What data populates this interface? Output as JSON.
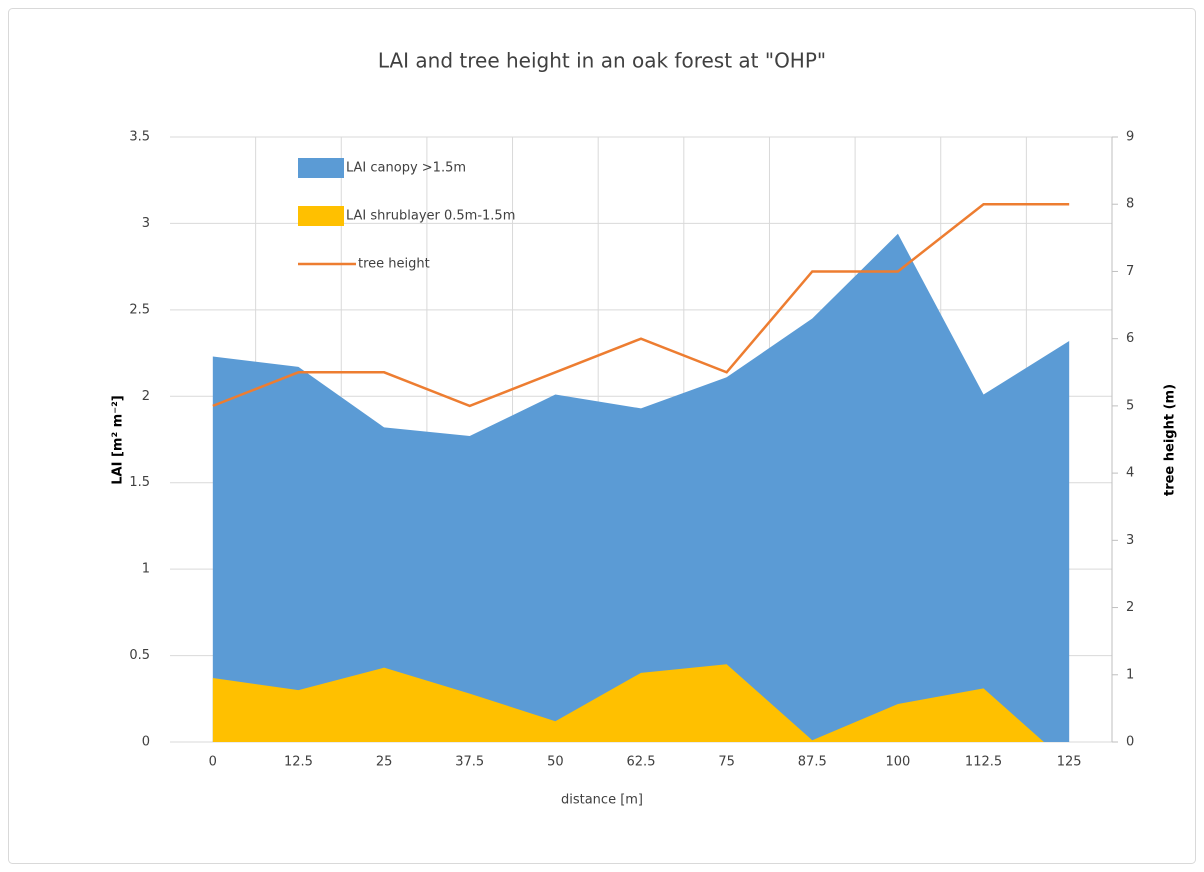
{
  "chart_data": {
    "type": "area",
    "title": "LAI and tree height in an oak forest at \"OHP\"",
    "x_label": "distance [m]",
    "y_label": "LAI [m² m⁻²]",
    "y2_label": "tree height (m)",
    "categories": [
      "0",
      "12.5",
      "25",
      "37.5",
      "50",
      "62.5",
      "75",
      "87.5",
      "100",
      "112.5",
      "125"
    ],
    "series": [
      {
        "name": "LAI canopy >1.5m",
        "type": "area",
        "color": "#5b9bd5",
        "values": [
          2.23,
          2.17,
          1.82,
          1.77,
          2.01,
          1.93,
          2.11,
          2.45,
          2.94,
          2.01,
          2.32
        ]
      },
      {
        "name": "LAI shrublayer 0.5m-1.5m",
        "type": "area",
        "color": "#ffc000",
        "values": [
          0.37,
          0.3,
          0.43,
          0.28,
          0.12,
          0.4,
          0.45,
          0.01,
          0.22,
          0.31,
          -0.13
        ]
      },
      {
        "name": "tree height",
        "type": "line",
        "color": "#ed7d31",
        "axis": "y2",
        "values": [
          5,
          5.5,
          5.5,
          5,
          5.5,
          6,
          5.5,
          7,
          7,
          8,
          8
        ]
      }
    ],
    "ylim": [
      0,
      3.5
    ],
    "yticks": [
      0,
      0.5,
      1,
      1.5,
      2,
      2.5,
      3,
      3.5
    ],
    "y2lim": [
      0,
      9
    ],
    "y2ticks": [
      0,
      1,
      2,
      3,
      4,
      5,
      6,
      7,
      8,
      9
    ],
    "grid": true,
    "legend": "upper left"
  }
}
